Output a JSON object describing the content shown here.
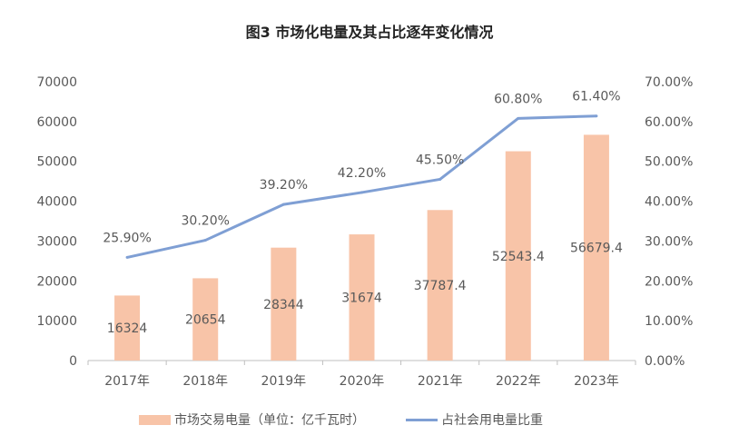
{
  "chart_data": {
    "type": "bar+line",
    "title": "图3 市场化电量及其占比逐年变化情况",
    "categories": [
      "2017年",
      "2018年",
      "2019年",
      "2020年",
      "2021年",
      "2022年",
      "2023年"
    ],
    "series": [
      {
        "name": "市场交易电量（单位：亿千瓦时）",
        "type": "bar",
        "axis": "left",
        "color": "#F8C4A8",
        "values": [
          16324,
          20654,
          28344,
          31674,
          37787.4,
          52543.4,
          56679.4
        ],
        "labels": [
          "16324",
          "20654",
          "28344",
          "31674",
          "37787.4",
          "52543.4",
          "56679.4"
        ]
      },
      {
        "name": "占社会用电量比重",
        "type": "line",
        "axis": "right",
        "color": "#7F9FD4",
        "values": [
          25.9,
          30.2,
          39.2,
          42.2,
          45.5,
          60.8,
          61.4
        ],
        "labels": [
          "25.90%",
          "30.20%",
          "39.20%",
          "42.20%",
          "45.50%",
          "60.80%",
          "61.40%"
        ]
      }
    ],
    "left_axis": {
      "range": [
        0,
        70000
      ],
      "ticks": [
        "0",
        "10000",
        "20000",
        "30000",
        "40000",
        "50000",
        "60000",
        "70000"
      ]
    },
    "right_axis": {
      "range": [
        0,
        70
      ],
      "ticks": [
        "0.00%",
        "10.00%",
        "20.00%",
        "30.00%",
        "40.00%",
        "50.00%",
        "60.00%",
        "70.00%"
      ]
    },
    "grid": false,
    "legend_position": "bottom"
  }
}
